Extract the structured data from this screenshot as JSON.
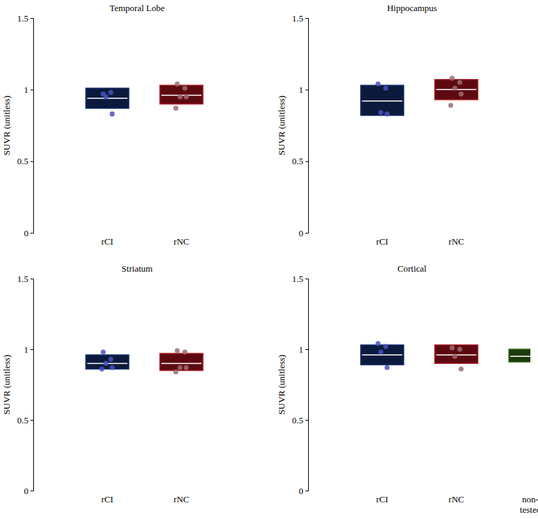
{
  "chart_data": [
    {
      "type": "box",
      "title": "Temporal Lobe",
      "y_label": "SUVR (unitless)",
      "categories": [
        "rCI",
        "rNC"
      ],
      "colors": [
        "#0b1a3c",
        "#5c0a10"
      ],
      "ylim": [
        0,
        1.5
      ],
      "yticks": [
        0,
        0.5,
        1,
        1.5
      ],
      "boxes": [
        {
          "low": 0.87,
          "high": 1.01,
          "center": 0.94,
          "points": [
            0.97,
            0.98,
            0.95,
            0.83
          ]
        },
        {
          "low": 0.9,
          "high": 1.03,
          "center": 0.96,
          "points": [
            1.04,
            1.01,
            0.95,
            0.95,
            0.87
          ]
        }
      ]
    },
    {
      "type": "box",
      "title": "Hippocampus",
      "y_label": "SUVR (unitless)",
      "categories": [
        "rCI",
        "rNC"
      ],
      "colors": [
        "#0b1a3c",
        "#5c0a10"
      ],
      "ylim": [
        0,
        1.5
      ],
      "yticks": [
        0,
        0.5,
        1,
        1.5
      ],
      "boxes": [
        {
          "low": 0.82,
          "high": 1.03,
          "center": 0.92,
          "points": [
            1.04,
            1.01,
            0.84,
            0.83
          ]
        },
        {
          "low": 0.93,
          "high": 1.07,
          "center": 1.0,
          "points": [
            1.08,
            1.05,
            1.01,
            0.97,
            0.89
          ]
        }
      ]
    },
    {
      "type": "box",
      "title": "Striatum",
      "y_label": "SUVR (unitless)",
      "categories": [
        "rCI",
        "rNC"
      ],
      "colors": [
        "#0b1a3c",
        "#5c0a10"
      ],
      "ylim": [
        0,
        1.5
      ],
      "yticks": [
        0,
        0.5,
        1,
        1.5
      ],
      "boxes": [
        {
          "low": 0.86,
          "high": 0.96,
          "center": 0.9,
          "points": [
            0.98,
            0.93,
            0.9,
            0.87,
            0.86
          ]
        },
        {
          "low": 0.85,
          "high": 0.97,
          "center": 0.9,
          "points": [
            0.99,
            0.98,
            0.87,
            0.87,
            0.84
          ]
        }
      ]
    },
    {
      "type": "box",
      "title": "Cortical",
      "y_label": "SUVR (unitless)",
      "categories": [
        "rCI",
        "rNC",
        "non-tested"
      ],
      "colors": [
        "#0b1a3c",
        "#5c0a10",
        "#1c3a0c"
      ],
      "ylim": [
        0,
        1.5
      ],
      "yticks": [
        0,
        0.5,
        1,
        1.5
      ],
      "boxes": [
        {
          "low": 0.89,
          "high": 1.03,
          "center": 0.96,
          "points": [
            1.04,
            1.02,
            0.98,
            0.87
          ]
        },
        {
          "low": 0.9,
          "high": 1.03,
          "center": 0.96,
          "points": [
            1.01,
            1.0,
            0.95,
            0.86
          ]
        },
        {
          "low": 0.91,
          "high": 1.0,
          "center": 0.95,
          "points": []
        }
      ]
    }
  ]
}
